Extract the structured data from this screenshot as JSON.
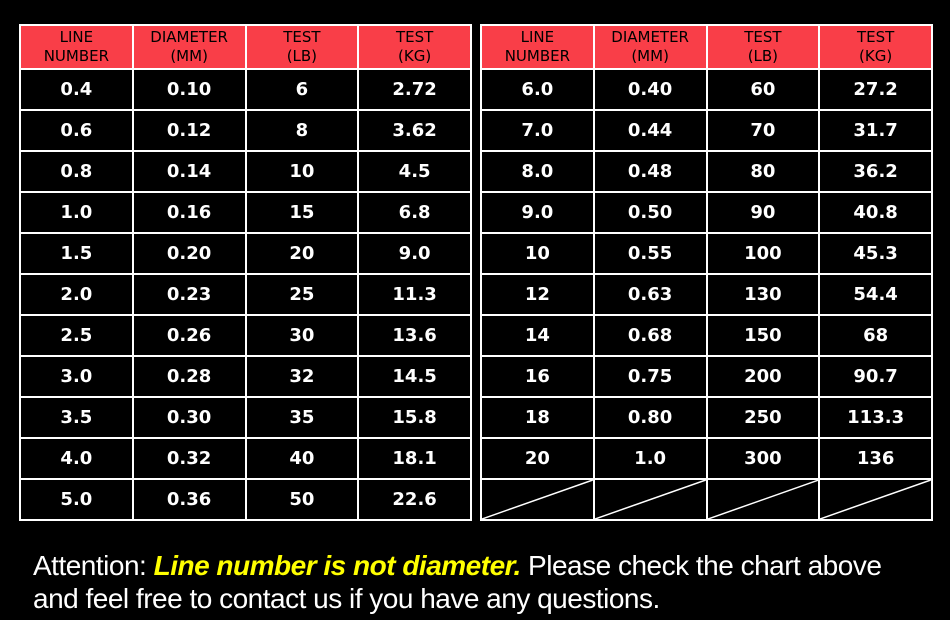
{
  "colors": {
    "background": "#000000",
    "header_bg": "#f93e48",
    "header_text": "#000000",
    "cell_text": "#ffffff",
    "border": "#ffffff",
    "highlight_text": "#ffff00"
  },
  "tables": [
    {
      "headers": [
        "LINE\nNUMBER",
        "DIAMETER\n(MM)",
        "TEST\n(LB)",
        "TEST\n(KG)"
      ],
      "rows": [
        [
          "0.4",
          "0.10",
          "6",
          "2.72"
        ],
        [
          "0.6",
          "0.12",
          "8",
          "3.62"
        ],
        [
          "0.8",
          "0.14",
          "10",
          "4.5"
        ],
        [
          "1.0",
          "0.16",
          "15",
          "6.8"
        ],
        [
          "1.5",
          "0.20",
          "20",
          "9.0"
        ],
        [
          "2.0",
          "0.23",
          "25",
          "11.3"
        ],
        [
          "2.5",
          "0.26",
          "30",
          "13.6"
        ],
        [
          "3.0",
          "0.28",
          "32",
          "14.5"
        ],
        [
          "3.5",
          "0.30",
          "35",
          "15.8"
        ],
        [
          "4.0",
          "0.32",
          "40",
          "18.1"
        ],
        [
          "5.0",
          "0.36",
          "50",
          "22.6"
        ]
      ],
      "diagonal_last_row": false
    },
    {
      "headers": [
        "LINE\nNUMBER",
        "DIAMETER\n(MM)",
        "TEST\n(LB)",
        "TEST\n(KG)"
      ],
      "rows": [
        [
          "6.0",
          "0.40",
          "60",
          "27.2"
        ],
        [
          "7.0",
          "0.44",
          "70",
          "31.7"
        ],
        [
          "8.0",
          "0.48",
          "80",
          "36.2"
        ],
        [
          "9.0",
          "0.50",
          "90",
          "40.8"
        ],
        [
          "10",
          "0.55",
          "100",
          "45.3"
        ],
        [
          "12",
          "0.63",
          "130",
          "54.4"
        ],
        [
          "14",
          "0.68",
          "150",
          "68"
        ],
        [
          "16",
          "0.75",
          "200",
          "90.7"
        ],
        [
          "18",
          "0.80",
          "250",
          "113.3"
        ],
        [
          "20",
          "1.0",
          "300",
          "136"
        ]
      ],
      "diagonal_last_row": true
    }
  ],
  "attention": {
    "prefix": "Attention: ",
    "highlight": "Line number is not diameter.",
    "suffix": " Please check the chart above\nand feel free to contact us if you have any questions."
  },
  "chart_data": [
    {
      "type": "table",
      "title": "Fishing line size chart (left table)",
      "columns": [
        "LINE NUMBER",
        "DIAMETER (MM)",
        "TEST (LB)",
        "TEST (KG)"
      ],
      "rows": [
        [
          "0.4",
          "0.10",
          "6",
          "2.72"
        ],
        [
          "0.6",
          "0.12",
          "8",
          "3.62"
        ],
        [
          "0.8",
          "0.14",
          "10",
          "4.5"
        ],
        [
          "1.0",
          "0.16",
          "15",
          "6.8"
        ],
        [
          "1.5",
          "0.20",
          "20",
          "9.0"
        ],
        [
          "2.0",
          "0.23",
          "25",
          "11.3"
        ],
        [
          "2.5",
          "0.26",
          "30",
          "13.6"
        ],
        [
          "3.0",
          "0.28",
          "32",
          "14.5"
        ],
        [
          "3.5",
          "0.30",
          "35",
          "15.8"
        ],
        [
          "4.0",
          "0.32",
          "40",
          "18.1"
        ],
        [
          "5.0",
          "0.36",
          "50",
          "22.6"
        ]
      ]
    },
    {
      "type": "table",
      "title": "Fishing line size chart (right table)",
      "columns": [
        "LINE NUMBER",
        "DIAMETER (MM)",
        "TEST (LB)",
        "TEST (KG)"
      ],
      "rows": [
        [
          "6.0",
          "0.40",
          "60",
          "27.2"
        ],
        [
          "7.0",
          "0.44",
          "70",
          "31.7"
        ],
        [
          "8.0",
          "0.48",
          "80",
          "36.2"
        ],
        [
          "9.0",
          "0.50",
          "90",
          "40.8"
        ],
        [
          "10",
          "0.55",
          "100",
          "45.3"
        ],
        [
          "12",
          "0.63",
          "130",
          "54.4"
        ],
        [
          "14",
          "0.68",
          "150",
          "68"
        ],
        [
          "16",
          "0.75",
          "200",
          "90.7"
        ],
        [
          "18",
          "0.80",
          "250",
          "113.3"
        ],
        [
          "20",
          "1.0",
          "300",
          "136"
        ]
      ],
      "note": "final row is empty cells marked with diagonal slashes"
    }
  ]
}
